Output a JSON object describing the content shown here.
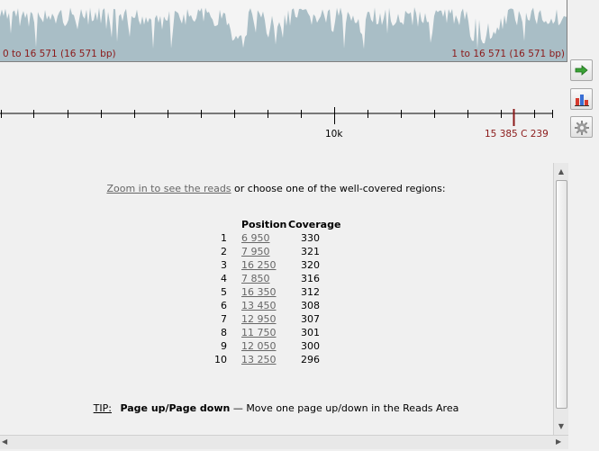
{
  "coverage_strip": {
    "left_range": "0 to 16 571 (16 571 bp)",
    "right_range": "1 to 16 571 (16 571 bp)",
    "fill_color": "#a9bec6"
  },
  "ruler": {
    "major_label": "10k",
    "cursor_label": "15 385 C 239",
    "cursor_color": "#8b1a1a"
  },
  "toolbar": {
    "goto_icon": "green-arrow-icon",
    "chart_icon": "bar-chart-icon",
    "settings_icon": "gear-icon"
  },
  "reads": {
    "zoom_link": "Zoom in to see the reads",
    "intro_rest": " or choose one of the well-covered regions:",
    "header_position": "Position",
    "header_coverage": "Coverage",
    "regions": [
      {
        "index": "1",
        "position": "6 950",
        "coverage": "330"
      },
      {
        "index": "2",
        "position": "7 950",
        "coverage": "321"
      },
      {
        "index": "3",
        "position": "16 250",
        "coverage": "320"
      },
      {
        "index": "4",
        "position": "7 850",
        "coverage": "316"
      },
      {
        "index": "5",
        "position": "16 350",
        "coverage": "312"
      },
      {
        "index": "6",
        "position": "13 450",
        "coverage": "308"
      },
      {
        "index": "7",
        "position": "12 950",
        "coverage": "307"
      },
      {
        "index": "8",
        "position": "11 750",
        "coverage": "301"
      },
      {
        "index": "9",
        "position": "12 050",
        "coverage": "300"
      },
      {
        "index": "10",
        "position": "13 250",
        "coverage": "296"
      }
    ],
    "tip_label": "TIP:",
    "tip_key": "Page up/Page down",
    "tip_text": " — Move one page up/down in the Reads Area"
  }
}
